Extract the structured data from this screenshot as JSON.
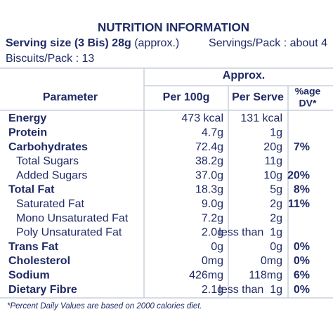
{
  "header": {
    "title": "NUTRITION INFORMATION",
    "serving_size": "Serving size (3 Bis) 28g",
    "serving_note": "(approx.)",
    "servings_per_pack": "Servings/Pack : about 4",
    "biscuits_per_pack": "Biscuits/Pack : 13"
  },
  "table": {
    "group_header": "Approx.",
    "columns": {
      "parameter": "Parameter",
      "per_100g": "Per 100g",
      "per_serve": "Per Serve",
      "dv": [
        "%age",
        "DV*"
      ]
    },
    "rows": [
      {
        "name": "Energy",
        "per_100g": "473 kcal",
        "per_serve": "131 kcal"
      },
      {
        "name": "Protein",
        "per_100g": "4.7g",
        "per_serve": "1g"
      },
      {
        "name": "Carbohydrates",
        "per_100g": "72.4g",
        "per_serve": "20g",
        "dv": "7%",
        "sub": [
          {
            "name": "Total Sugars",
            "per_100g": "38.2g",
            "per_serve": "11g"
          },
          {
            "name": "Added Sugars",
            "per_100g": "37.0g",
            "per_serve": "10g",
            "dv": "20%"
          }
        ]
      },
      {
        "name": "Total Fat",
        "per_100g": "18.3g",
        "per_serve": "5g",
        "dv": "8%",
        "sub": [
          {
            "name": "Saturated Fat",
            "per_100g": "9.0g",
            "per_serve": "2g",
            "dv": "11%"
          },
          {
            "name": "Mono Unsaturated Fat",
            "per_100g": "7.2g",
            "per_serve": "2g"
          },
          {
            "name": "Poly Unsaturated Fat",
            "per_100g": "2.0g",
            "per_serve": "less than  1g"
          }
        ]
      },
      {
        "name": "Trans Fat",
        "per_100g": "0g",
        "per_serve": "0g",
        "dv": "0%"
      },
      {
        "name": "Cholesterol",
        "per_100g": "0mg",
        "per_serve": "0mg",
        "dv": "0%"
      },
      {
        "name": "Sodium",
        "per_100g": "426mg",
        "per_serve": "118mg",
        "dv": "6%"
      },
      {
        "name": "Dietary Fibre",
        "per_100g": "2.1g",
        "per_serve": "less than  1g",
        "dv": "0%"
      }
    ],
    "footnote": "*Percent Daily Values are based on 2000 calories diet."
  }
}
